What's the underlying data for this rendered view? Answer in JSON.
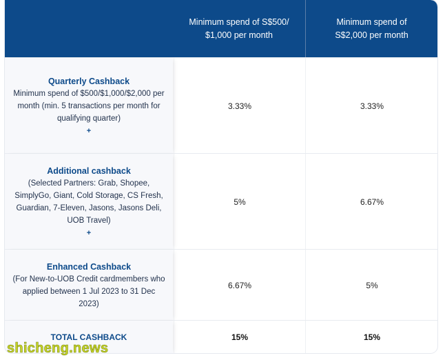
{
  "header": {
    "col2": "Minimum spend of S$500/ $1,000 per month",
    "col3": "Minimum spend of S$2,000 per month"
  },
  "rows": [
    {
      "title": "Quarterly Cashback",
      "desc": "Minimum spend of $500/$1,000/$2,000 per month (min. 5 transactions per month for qualifying quarter)",
      "plus": "+",
      "col2": "3.33%",
      "col3": "3.33%"
    },
    {
      "title": "Additional cashback",
      "desc": "(Selected Partners: Grab, Shopee, SimplyGo, Giant, Cold Storage, CS Fresh, Guardian, 7-Eleven, Jasons, Jasons Deli, UOB Travel)",
      "plus": "+",
      "col2": "5%",
      "col3": "6.67%"
    },
    {
      "title": "Enhanced Cashback",
      "desc": "(For New-to-UOB Credit cardmembers who applied between 1 Jul 2023 to 31 Dec 2023)",
      "col2": "6.67%",
      "col3": "5%"
    }
  ],
  "total": {
    "label": "TOTAL CASHBACK",
    "col2": "15%",
    "col3": "15%"
  },
  "watermark": "shicheng.news",
  "colors": {
    "header_bg": "#0d4a8a",
    "title": "#0d4a8a",
    "watermark": "#c7d428"
  }
}
